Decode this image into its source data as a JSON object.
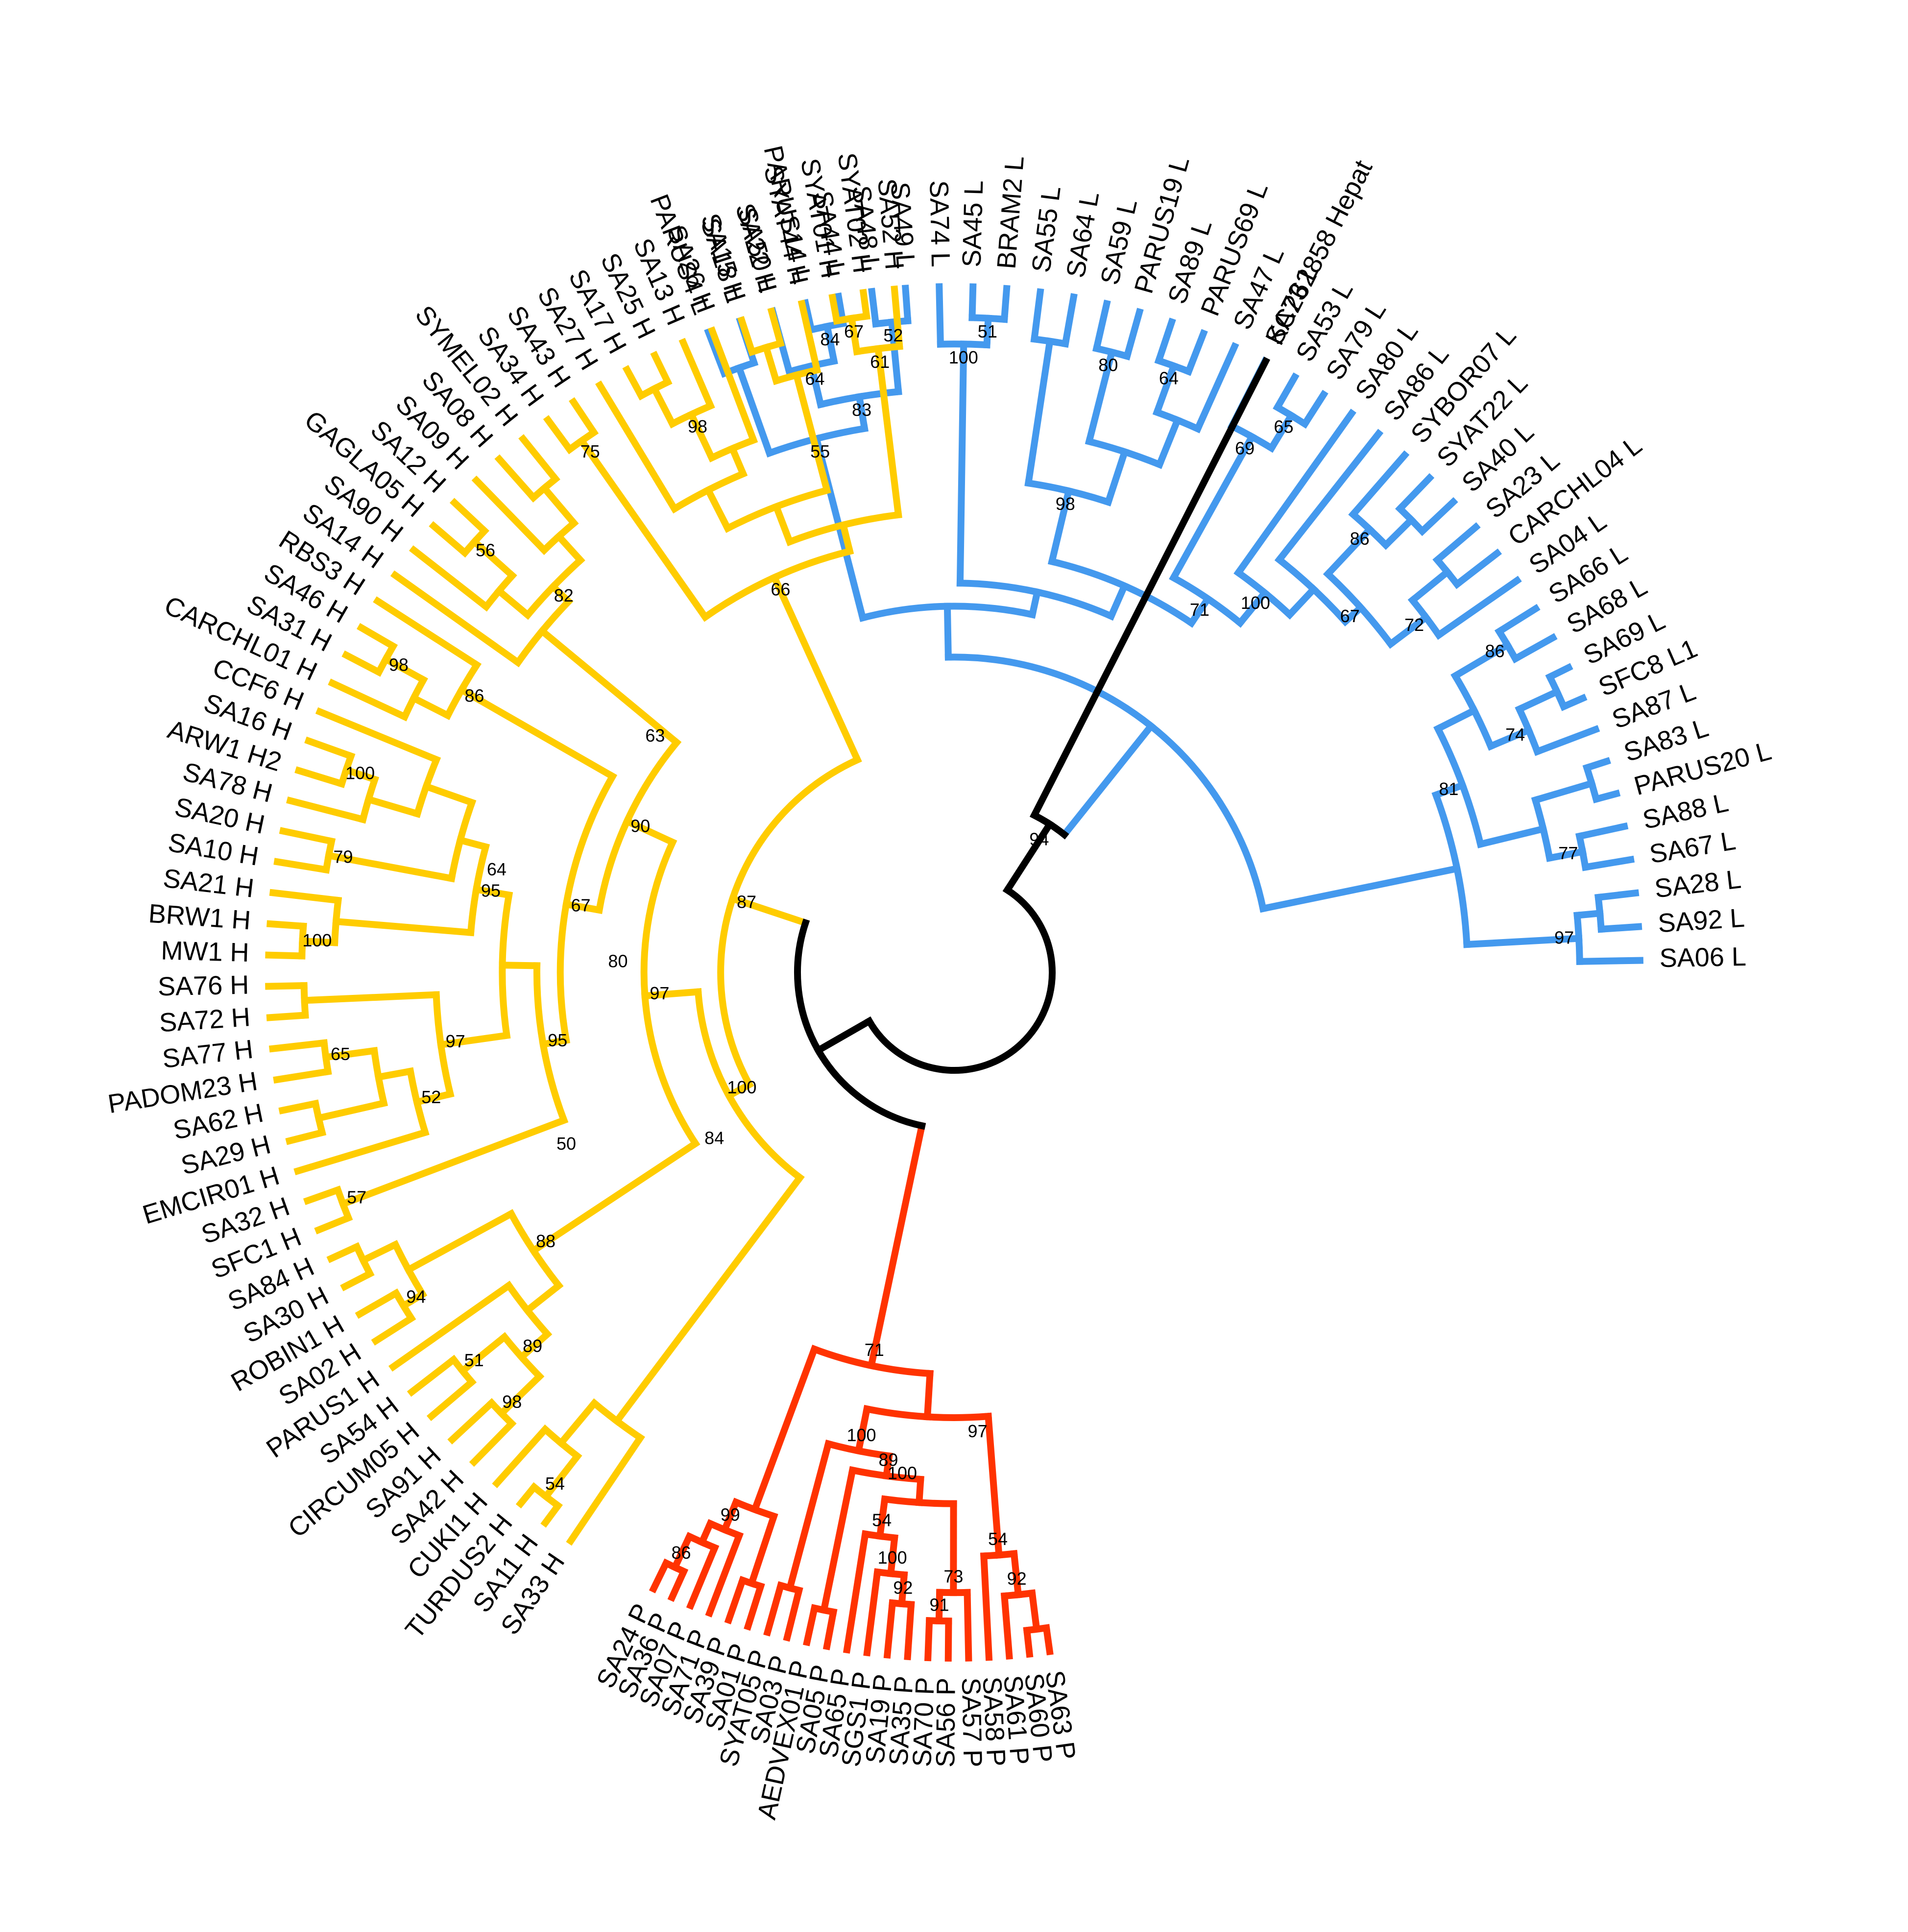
{
  "colors": {
    "L": "#4499ee",
    "H": "#ffcc00",
    "P": "#ff3300",
    "outgroup": "#000000",
    "root": "#000000"
  },
  "clades": {
    "L": {
      "leaves": [
        "PARUS4 L",
        "SA18 L",
        "SA50 L",
        "PARUS14 L",
        "SA44 L",
        "SA48 L",
        "SA49 L",
        "SA74 L",
        "SA45 L",
        "BRAM2 L",
        "SA55 L",
        "SA64 L",
        "SA59 L",
        "PARUS19 L",
        "SA89 L",
        "PARUS69 L",
        "SA47 L",
        "SA73 L",
        "SA53 L",
        "SA79 L",
        "SA80 L",
        "SA86 L",
        "SYBOR07 L",
        "SYAT22 L",
        "SA40 L",
        "SA23 L",
        "CARCHL04 L",
        "SA04 L",
        "SA66 L",
        "SA68 L",
        "SA69 L",
        "SFC8 L1",
        "SA87 L",
        "SA83 L",
        "PARUS20 L",
        "SA88 L",
        "SA67 L",
        "SA28 L",
        "SA92 L",
        "SA06 L"
      ],
      "bootstrap": [
        "84",
        "51",
        "64",
        "65",
        "69",
        "72",
        "74",
        "80",
        "77",
        "86",
        "100",
        "52",
        "67",
        "64",
        "98",
        "86",
        "83",
        "97",
        "81",
        "100",
        "71",
        "55"
      ]
    },
    "P": {
      "leaves": [
        "SA63 P",
        "SA60 P",
        "SA61 P",
        "SA58 P",
        "SA57 P",
        "SA56 P",
        "SA70 P",
        "SA35 P",
        "SA19 P",
        "SGS1 P",
        "SA65 P",
        "SA05 P",
        "AEDVEX01 P",
        "SA03 P",
        "SYAT05 P",
        "SA01 P",
        "SA39 P",
        "SA71 P",
        "SA07 P",
        "SA36 P",
        "SA24 P"
      ],
      "bootstrap": [
        "92",
        "86",
        "91",
        "100",
        "92",
        "54",
        "73",
        "54",
        "99",
        "89",
        "100",
        "71",
        "97",
        "100"
      ]
    },
    "H": {
      "leaves": [
        "SA33 H",
        "SA11 H",
        "TURDUS2 H",
        "CUKI1 H",
        "SA42 H",
        "SA91 H",
        "CIRCUM05 H",
        "SA54 H",
        "PARUS1 H",
        "SA02 H",
        "ROBIN1 H",
        "SA30 H",
        "SA84 H",
        "SFC1 H",
        "SA32 H",
        "EMCIR01 H",
        "SA29 H",
        "SA62 H",
        "PADOM23 H",
        "SA77 H",
        "SA72 H",
        "SA76 H",
        "MW1 H",
        "BRW1 H",
        "SA21 H",
        "SA10 H",
        "SA20 H",
        "SA78 H",
        "ARW1 H2",
        "SA16 H",
        "CCF6 H",
        "CARCHL01 H",
        "SA31 H",
        "SA46 H",
        "RBS3 H",
        "SA14 H",
        "SA90 H",
        "GAGLA05 H",
        "SA12 H",
        "SA09 H",
        "SA08 H",
        "SYMEL02 H",
        "SA34 H",
        "SA43 H",
        "SA27 H",
        "SA17 H",
        "SA25 H",
        "SA13 H",
        "SA26 H",
        "SA15 H",
        "SA22 H",
        "SYAT44 H",
        "SYAT01 H",
        "SYAT02 H",
        "SA52 H"
      ],
      "bootstrap": [
        "98",
        "57",
        "56",
        "98",
        "100",
        "100",
        "65",
        "98",
        "94",
        "75",
        "52",
        "67",
        "51",
        "89",
        "54",
        "61",
        "79",
        "86",
        "97",
        "95",
        "82",
        "95",
        "66",
        "88",
        "67",
        "90",
        "97",
        "100",
        "87",
        "84",
        "80",
        "63",
        "50",
        "64"
      ]
    }
  },
  "outgroup": {
    "label": "KC262858 Hepat",
    "bootstrap": "94"
  }
}
